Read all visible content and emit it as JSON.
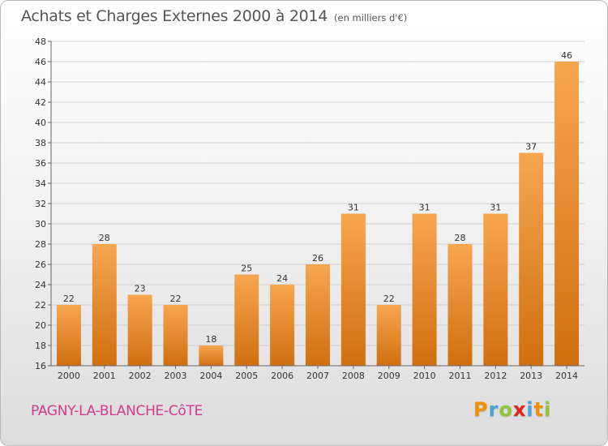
{
  "header": {
    "title": "Achats et Charges Externes 2000 à 2014",
    "subtitle": "(en milliers d'€)"
  },
  "footer": {
    "town": "PAGNY-LA-BLANCHE-CôTE",
    "logo_letters": [
      "P",
      "r",
      "o",
      "x",
      "i",
      "t",
      "i"
    ],
    "logo_colors": [
      "#f29100",
      "#4ea3d9",
      "#8cc63e",
      "#e2231a",
      "#4ea3d9",
      "#f29100",
      "#8cc63e"
    ]
  },
  "colors": {
    "bar_light": "#f7a650",
    "bar_dark": "#d06f10",
    "grid": "#cfcfcf",
    "title": "#555555",
    "town": "#d63a8a"
  },
  "chart_data": {
    "type": "bar",
    "categories": [
      "2000",
      "2001",
      "2002",
      "2003",
      "2004",
      "2005",
      "2006",
      "2007",
      "2008",
      "2009",
      "2010",
      "2011",
      "2012",
      "2013",
      "2014"
    ],
    "values": [
      22,
      28,
      23,
      22,
      18,
      25,
      24,
      26,
      31,
      22,
      31,
      28,
      31,
      37,
      46
    ],
    "ylim": [
      16,
      48
    ],
    "yticks": [
      16,
      18,
      20,
      22,
      24,
      26,
      28,
      30,
      32,
      34,
      36,
      38,
      40,
      42,
      44,
      46,
      48
    ],
    "grid": true,
    "data_labels": true
  }
}
